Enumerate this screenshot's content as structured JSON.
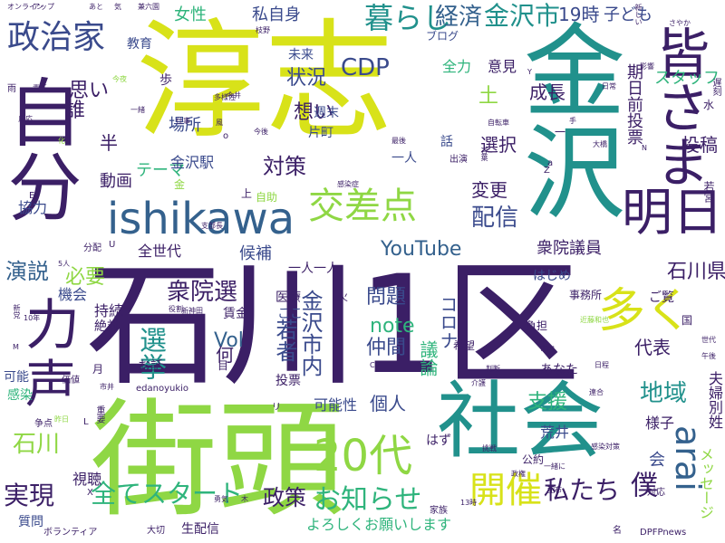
{
  "palette": {
    "purple": "#3b1f66",
    "indigo": "#3a4a8c",
    "blue": "#34618d",
    "teal": "#21918c",
    "green": "#2fb47c",
    "lime": "#8fd744",
    "yellow": "#d8e219",
    "background": "#ffffff"
  },
  "words": [
    "淳志",
    "石川1区",
    "街頭",
    "社会",
    "金沢",
    "皆さま",
    "自分",
    "ishikawa",
    "交差点",
    "20代",
    "お知らせ",
    "全てスタート",
    "開催",
    "多く",
    "明日",
    "力",
    "声",
    "arai",
    "政治家",
    "暮らし",
    "経済",
    "金沢市",
    "CDP",
    "19時",
    "子ども",
    "女性",
    "私自身",
    "選挙",
    "衆院選",
    "実現",
    "演説",
    "地域",
    "石川県",
    "YouTube",
    "配信",
    "対策",
    "note",
    "僕",
    "私たち",
    "政策",
    "よろしくお願いします",
    "支援",
    "石川",
    "必要",
    "思い",
    "想い",
    "状況",
    "誰",
    "Vol",
    "金沢市内",
    "仲間",
    "問題",
    "代表",
    "衆院議員",
    "期日前投票",
    "投稿",
    "選択",
    "変更",
    "成長",
    "スタッフ",
    "意見",
    "全力",
    "動画",
    "テーマ",
    "金沢駅",
    "場所",
    "一人一人",
    "全世代",
    "候補",
    "若者",
    "何",
    "個人",
    "可能性",
    "コロナ",
    "議論",
    "メッセージ",
    "夫婦別姓",
    "様子",
    "視聴",
    "質問",
    "生配信",
    "はず",
    "荒井",
    "会",
    "半",
    "土",
    "ご覧",
    "はじめ",
    "あなた",
    "公約",
    "医療",
    "持続",
    "絶対",
    "機会",
    "賃金",
    "ここ",
    "お話",
    "出演",
    "片町",
    "週末",
    "ブログ",
    "未来",
    "教育",
    "歩",
    "協力",
    "感染",
    "月",
    "目",
    "上",
    "一人",
    "話",
    "可能",
    "自助",
    "大切",
    "新神田",
    "家族",
    "価値",
    "重要",
    "ボランティア",
    "今後",
    "DPFPnews",
    "edanoyukio",
    "アップ",
    "オンライン",
    "兼六園",
    "責任",
    "反応",
    "影響",
    "日常",
    "自転車",
    "最後",
    "希望",
    "事務所",
    "負担",
    "火",
    "水",
    "世代",
    "午後",
    "日程",
    "判断",
    "挑戦",
    "勇気",
    "政権",
    "対応",
    "新しい",
    "さやか",
    "若宮",
    "大橋",
    "感染症",
    "感染対策",
    "一緒に",
    "市内",
    "連合",
    "近藤和也",
    "支部長",
    "分配",
    "役割",
    "争点",
    "昨日",
    "新党",
    "多様性",
    "今井",
    "仕事",
    "風",
    "市井",
    "介護",
    "配布",
    "名",
    "雨",
    "化",
    "一緒",
    "あと",
    "気",
    "今夜",
    "言葉",
    "5人",
    "10年",
    "枝野",
    "遅刻",
    "手",
    "Y",
    "Z",
    "X",
    "E",
    "C",
    "L",
    "M",
    "U",
    "N",
    "a",
    "o",
    "一",
    "国",
    "金",
    "木",
    "投票",
    "13時",
    "リ"
  ]
}
